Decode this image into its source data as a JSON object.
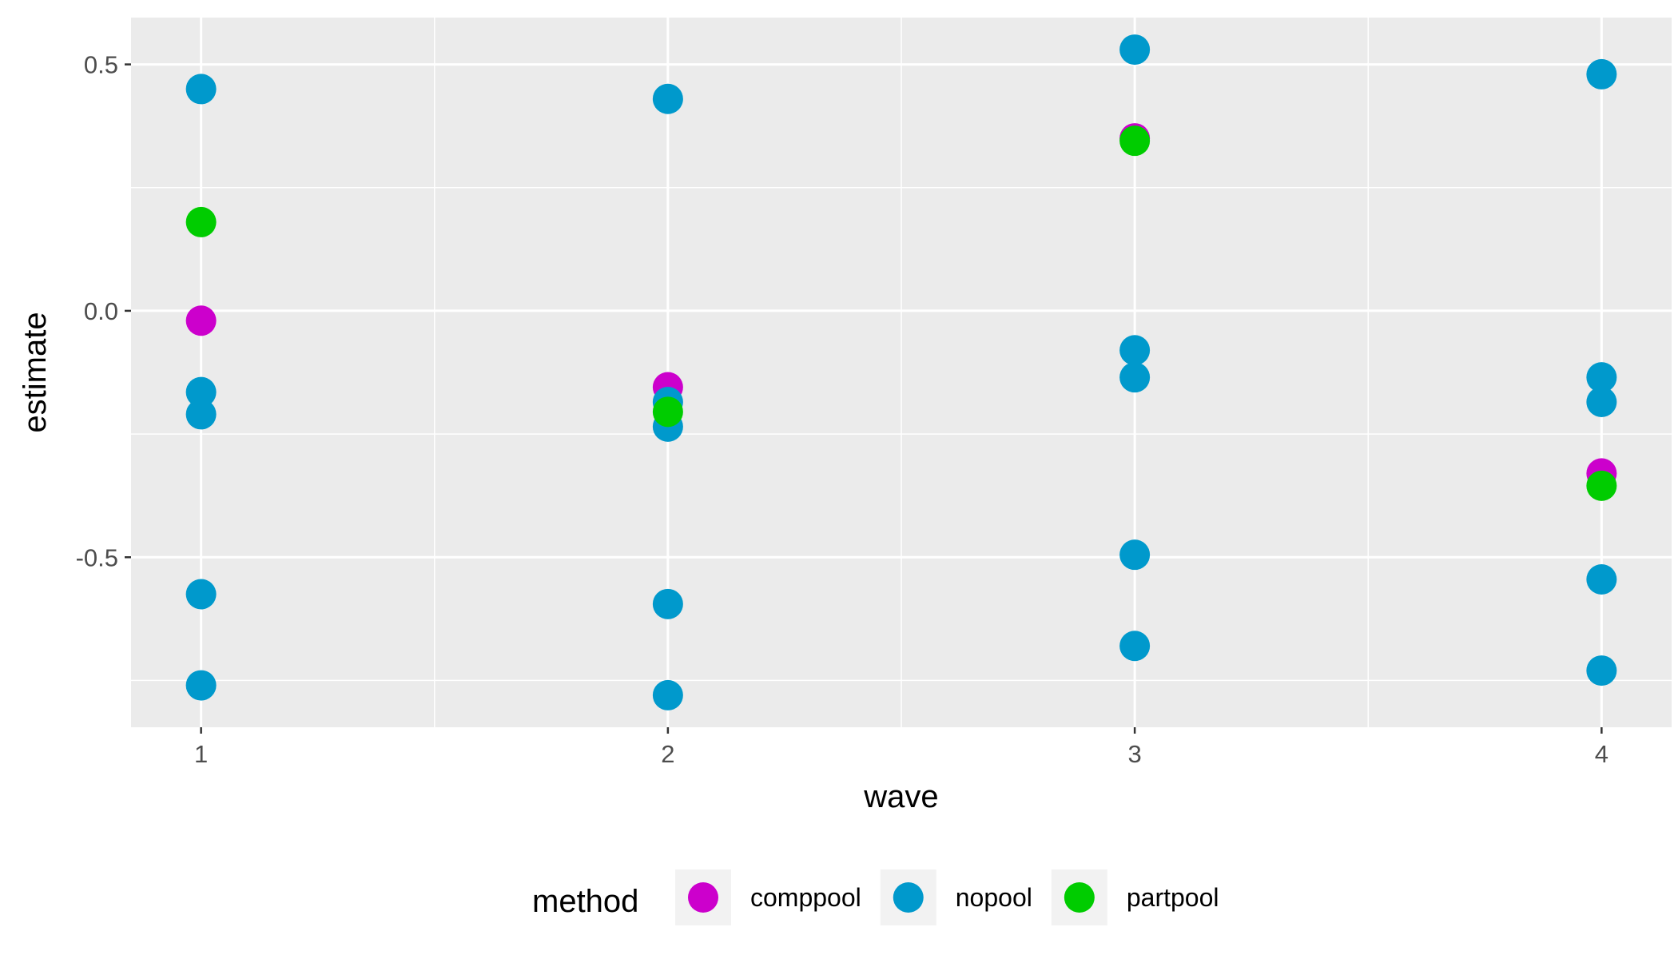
{
  "chart_data": {
    "type": "scatter",
    "xlabel": "wave",
    "ylabel": "estimate",
    "x_ticks": [
      "1",
      "2",
      "3",
      "4"
    ],
    "y_ticks": [
      {
        "value": 0.5,
        "label": "0.5"
      },
      {
        "value": 0.0,
        "label": "0.0"
      },
      {
        "value": -0.5,
        "label": "-0.5"
      }
    ],
    "xlim": [
      0.85,
      4.15
    ],
    "ylim": [
      -0.845,
      0.595
    ],
    "grid": true,
    "legend_position": "bottom",
    "legend_title": "method",
    "series": [
      {
        "name": "comppool",
        "color": "#CC00CC",
        "points": [
          {
            "x": 1,
            "y": -0.02
          },
          {
            "x": 2,
            "y": -0.155
          },
          {
            "x": 3,
            "y": 0.35
          },
          {
            "x": 4,
            "y": -0.33
          }
        ]
      },
      {
        "name": "nopool",
        "color": "#0099CC",
        "points": [
          {
            "x": 1,
            "y": 0.45
          },
          {
            "x": 1,
            "y": -0.165
          },
          {
            "x": 1,
            "y": -0.21
          },
          {
            "x": 1,
            "y": -0.575
          },
          {
            "x": 1,
            "y": -0.76
          },
          {
            "x": 2,
            "y": 0.43
          },
          {
            "x": 2,
            "y": -0.185
          },
          {
            "x": 2,
            "y": -0.235
          },
          {
            "x": 2,
            "y": -0.595
          },
          {
            "x": 2,
            "y": -0.78
          },
          {
            "x": 3,
            "y": 0.53
          },
          {
            "x": 3,
            "y": -0.08
          },
          {
            "x": 3,
            "y": -0.135
          },
          {
            "x": 3,
            "y": -0.495
          },
          {
            "x": 3,
            "y": -0.68
          },
          {
            "x": 4,
            "y": 0.48
          },
          {
            "x": 4,
            "y": -0.135
          },
          {
            "x": 4,
            "y": -0.185
          },
          {
            "x": 4,
            "y": -0.545
          },
          {
            "x": 4,
            "y": -0.73
          }
        ]
      },
      {
        "name": "partpool",
        "color": "#00CC00",
        "points": [
          {
            "x": 1,
            "y": 0.18
          },
          {
            "x": 2,
            "y": -0.205
          },
          {
            "x": 3,
            "y": 0.345
          },
          {
            "x": 4,
            "y": -0.355
          }
        ]
      }
    ]
  }
}
